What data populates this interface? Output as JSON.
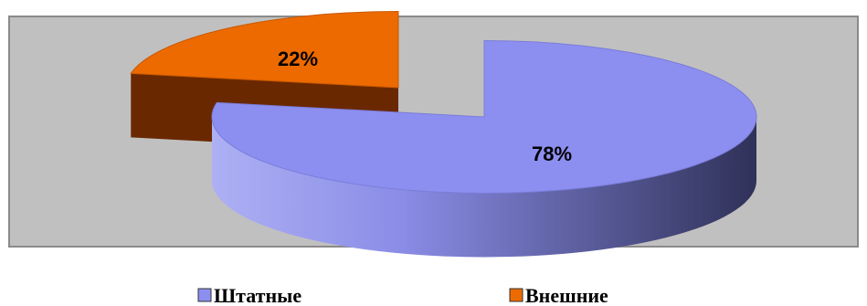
{
  "chart_data": {
    "type": "pie",
    "categories": [
      "Штатные",
      "Внешние"
    ],
    "values": [
      78,
      22
    ],
    "value_labels": [
      "78%",
      "22%"
    ],
    "colors": {
      "Штатные": "#8c8ff0",
      "Внешние": "#ed6a00"
    },
    "side_colors": {
      "Штатные": [
        "#a9abf2",
        "#383a66"
      ],
      "Внешние": [
        "#6a2800",
        "#5a2200"
      ]
    },
    "background": "#c0c0c0",
    "border": "#8a8a8a",
    "style": "3d-exploded",
    "legend_position": "bottom",
    "title": ""
  }
}
